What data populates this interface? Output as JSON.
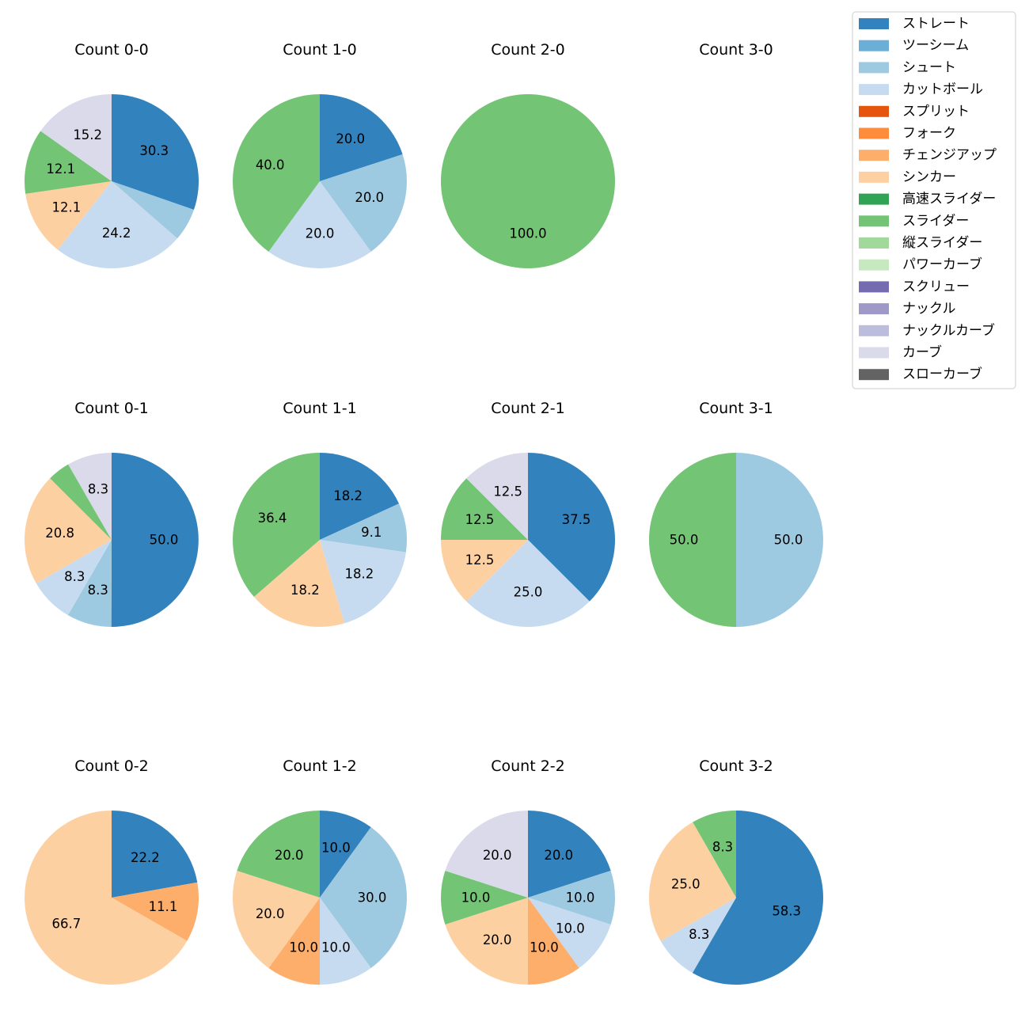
{
  "colors": {
    "ストレート": "#3182bd",
    "ツーシーム": "#6baed6",
    "シュート": "#9ecae1",
    "カットボール": "#c6dbef",
    "スプリット": "#e6550d",
    "フォーク": "#fd8d3c",
    "チェンジアップ": "#fdae6b",
    "シンカー": "#fdd0a2",
    "高速スライダー": "#31a354",
    "スライダー": "#74c476",
    "縦スライダー": "#a1d99b",
    "パワーカーブ": "#c7e9c0",
    "スクリュー": "#756bb1",
    "ナックル": "#9e9ac8",
    "ナックルカーブ": "#bcbddc",
    "カーブ": "#dadaeb",
    "スローカーブ": "#636363"
  },
  "chart_data": {
    "type": "pie",
    "legend": {
      "placement": "top-right",
      "entries": [
        "ストレート",
        "ツーシーム",
        "シュート",
        "カットボール",
        "スプリット",
        "フォーク",
        "チェンジアップ",
        "シンカー",
        "高速スライダー",
        "スライダー",
        "縦スライダー",
        "パワーカーブ",
        "スクリュー",
        "ナックル",
        "ナックルカーブ",
        "カーブ",
        "スローカーブ"
      ]
    },
    "charts": [
      {
        "title": "Count 0-0",
        "slices": [
          {
            "pitch": "ストレート",
            "value": 30.3
          },
          {
            "pitch": "シュート",
            "value": 6.1
          },
          {
            "pitch": "カットボール",
            "value": 24.2
          },
          {
            "pitch": "シンカー",
            "value": 12.1
          },
          {
            "pitch": "スライダー",
            "value": 12.1
          },
          {
            "pitch": "カーブ",
            "value": 15.2
          }
        ]
      },
      {
        "title": "Count 1-0",
        "slices": [
          {
            "pitch": "ストレート",
            "value": 20.0
          },
          {
            "pitch": "シュート",
            "value": 20.0
          },
          {
            "pitch": "カットボール",
            "value": 20.0
          },
          {
            "pitch": "スライダー",
            "value": 40.0
          }
        ]
      },
      {
        "title": "Count 2-0",
        "slices": [
          {
            "pitch": "スライダー",
            "value": 100.0
          }
        ]
      },
      {
        "title": "Count 3-0",
        "slices": []
      },
      {
        "title": "Count 0-1",
        "slices": [
          {
            "pitch": "ストレート",
            "value": 50.0
          },
          {
            "pitch": "シュート",
            "value": 8.3
          },
          {
            "pitch": "カットボール",
            "value": 8.3
          },
          {
            "pitch": "シンカー",
            "value": 20.8
          },
          {
            "pitch": "スライダー",
            "value": 4.2
          },
          {
            "pitch": "カーブ",
            "value": 8.3
          }
        ]
      },
      {
        "title": "Count 1-1",
        "slices": [
          {
            "pitch": "ストレート",
            "value": 18.2
          },
          {
            "pitch": "シュート",
            "value": 9.1
          },
          {
            "pitch": "カットボール",
            "value": 18.2
          },
          {
            "pitch": "シンカー",
            "value": 18.2
          },
          {
            "pitch": "スライダー",
            "value": 36.4
          }
        ]
      },
      {
        "title": "Count 2-1",
        "slices": [
          {
            "pitch": "ストレート",
            "value": 37.5
          },
          {
            "pitch": "カットボール",
            "value": 25.0
          },
          {
            "pitch": "シンカー",
            "value": 12.5
          },
          {
            "pitch": "スライダー",
            "value": 12.5
          },
          {
            "pitch": "カーブ",
            "value": 12.5
          }
        ]
      },
      {
        "title": "Count 3-1",
        "slices": [
          {
            "pitch": "シュート",
            "value": 50.0
          },
          {
            "pitch": "スライダー",
            "value": 50.0
          }
        ]
      },
      {
        "title": "Count 0-2",
        "slices": [
          {
            "pitch": "ストレート",
            "value": 22.2
          },
          {
            "pitch": "チェンジアップ",
            "value": 11.1
          },
          {
            "pitch": "シンカー",
            "value": 66.7
          }
        ]
      },
      {
        "title": "Count 1-2",
        "slices": [
          {
            "pitch": "ストレート",
            "value": 10.0
          },
          {
            "pitch": "シュート",
            "value": 30.0
          },
          {
            "pitch": "カットボール",
            "value": 10.0
          },
          {
            "pitch": "チェンジアップ",
            "value": 10.0
          },
          {
            "pitch": "シンカー",
            "value": 20.0
          },
          {
            "pitch": "スライダー",
            "value": 20.0
          }
        ]
      },
      {
        "title": "Count 2-2",
        "slices": [
          {
            "pitch": "ストレート",
            "value": 20.0
          },
          {
            "pitch": "シュート",
            "value": 10.0
          },
          {
            "pitch": "カットボール",
            "value": 10.0
          },
          {
            "pitch": "チェンジアップ",
            "value": 10.0
          },
          {
            "pitch": "シンカー",
            "value": 20.0
          },
          {
            "pitch": "スライダー",
            "value": 10.0
          },
          {
            "pitch": "カーブ",
            "value": 20.0
          }
        ]
      },
      {
        "title": "Count 3-2",
        "slices": [
          {
            "pitch": "ストレート",
            "value": 58.3
          },
          {
            "pitch": "カットボール",
            "value": 8.3
          },
          {
            "pitch": "シンカー",
            "value": 25.0
          },
          {
            "pitch": "スライダー",
            "value": 8.3
          }
        ]
      }
    ]
  }
}
